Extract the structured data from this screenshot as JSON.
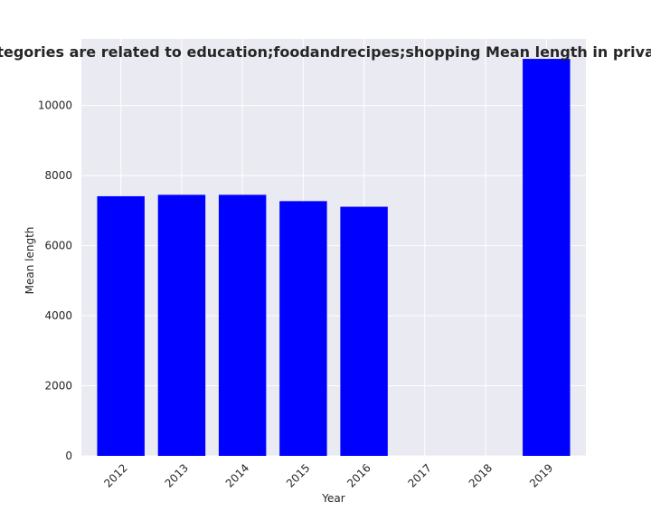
{
  "chart_data": {
    "type": "bar",
    "title": "Domain categories are related to education;foodandrecipes;shopping Mean length in privacy policies",
    "xlabel": "Year",
    "ylabel": "Mean length",
    "categories": [
      "2012",
      "2013",
      "2014",
      "2015",
      "2016",
      "2017",
      "2018",
      "2019"
    ],
    "values": [
      7410,
      7450,
      7450,
      7270,
      7110,
      null,
      null,
      11330
    ],
    "ylim": [
      0,
      11900
    ],
    "yticks": [
      0,
      2000,
      4000,
      6000,
      8000,
      10000
    ],
    "ytick_labels": [
      "0",
      "2000",
      "4000",
      "6000",
      "8000",
      "10000"
    ],
    "grid": true,
    "bar_color": "#0000ff",
    "plot_background": "#eaeaf2",
    "grid_color": "#ffffff"
  }
}
